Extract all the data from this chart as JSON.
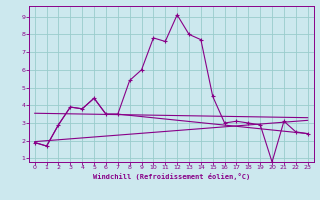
{
  "xlabel": "Windchill (Refroidissement éolien,°C)",
  "bg_color": "#cce8ee",
  "line_color": "#880088",
  "grid_color": "#99cccc",
  "xlim": [
    -0.5,
    23.5
  ],
  "ylim": [
    0.8,
    9.6
  ],
  "xticks": [
    0,
    1,
    2,
    3,
    4,
    5,
    6,
    7,
    8,
    9,
    10,
    11,
    12,
    13,
    14,
    15,
    16,
    17,
    18,
    19,
    20,
    21,
    22,
    23
  ],
  "yticks": [
    1,
    2,
    3,
    4,
    5,
    6,
    7,
    8,
    9
  ],
  "main_x": [
    0,
    1,
    2,
    3,
    4,
    5,
    6,
    7,
    8,
    9,
    10,
    11,
    12,
    13,
    14,
    15,
    16,
    17,
    18,
    19,
    20,
    21,
    22,
    23
  ],
  "main_y": [
    1.9,
    1.7,
    2.9,
    3.9,
    3.8,
    4.4,
    3.5,
    3.5,
    5.4,
    6.0,
    7.8,
    7.6,
    9.1,
    8.0,
    7.7,
    4.5,
    3.0,
    3.1,
    3.0,
    2.9,
    0.8,
    3.1,
    2.5,
    2.4
  ],
  "seg2_x": [
    0,
    1,
    2,
    3,
    4,
    5,
    6,
    7,
    23
  ],
  "seg2_y": [
    1.9,
    1.7,
    2.9,
    3.9,
    3.8,
    4.4,
    3.5,
    3.5,
    2.4
  ],
  "trend1_x": [
    0,
    23
  ],
  "trend1_y": [
    3.55,
    3.3
  ],
  "trend2_x": [
    0,
    23
  ],
  "trend2_y": [
    1.95,
    3.15
  ]
}
